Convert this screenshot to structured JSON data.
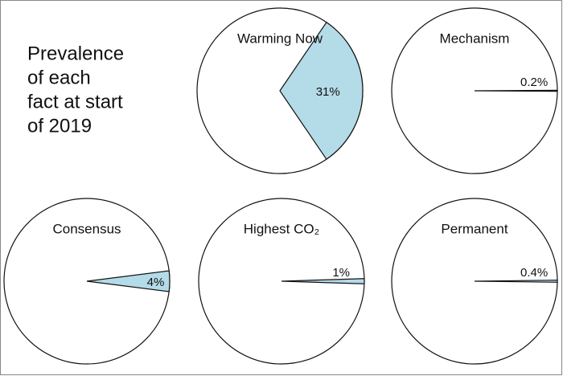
{
  "title": [
    "Prevalence",
    "of each",
    "fact at start",
    "of 2019"
  ],
  "chart_data": [
    {
      "type": "pie",
      "title": "Warming Now",
      "values": [
        31
      ],
      "value_labels": [
        "31%"
      ],
      "color": "#b3dbe8"
    },
    {
      "type": "pie",
      "title": "Mechanism",
      "values": [
        0.2
      ],
      "value_labels": [
        "0.2%"
      ],
      "color": "#b3dbe8"
    },
    {
      "type": "pie",
      "title": "Consensus",
      "values": [
        4
      ],
      "value_labels": [
        "4%"
      ],
      "color": "#b3dbe8"
    },
    {
      "type": "pie",
      "title": "Highest CO₂",
      "values": [
        1
      ],
      "value_labels": [
        "1%"
      ],
      "color": "#b3dbe8"
    },
    {
      "type": "pie",
      "title": "Permanent",
      "values": [
        0.4
      ],
      "value_labels": [
        "0.4%"
      ],
      "color": "#b3dbe8"
    }
  ]
}
